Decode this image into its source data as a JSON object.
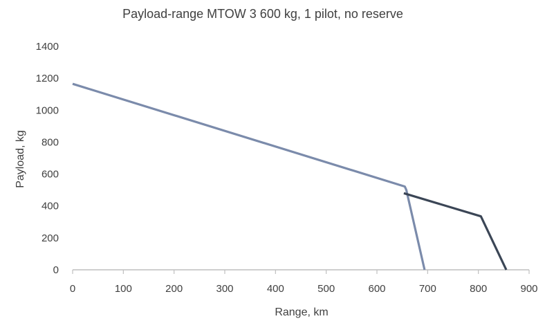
{
  "chart_data": {
    "type": "line",
    "title": "Payload-range MTOW 3 600 kg, 1 pilot, no reserve",
    "xlabel": "Range, km",
    "ylabel": "Payload, kg",
    "xlim": [
      0,
      900
    ],
    "ylim": [
      0,
      1400
    ],
    "xticks": [
      0,
      100,
      200,
      300,
      400,
      500,
      600,
      700,
      800,
      900
    ],
    "yticks": [
      0,
      200,
      400,
      600,
      800,
      1000,
      1200,
      1400
    ],
    "grid": false,
    "legend": "none",
    "series": [
      {
        "color": "#7b8bab",
        "points": [
          {
            "x": 0,
            "y": 1165
          },
          {
            "x": 655,
            "y": 522
          },
          {
            "x": 658,
            "y": 500
          },
          {
            "x": 694,
            "y": 0
          }
        ]
      },
      {
        "color": "#3b4656",
        "points": [
          {
            "x": 653,
            "y": 480
          },
          {
            "x": 805,
            "y": 335
          },
          {
            "x": 855,
            "y": 0
          }
        ]
      }
    ]
  }
}
